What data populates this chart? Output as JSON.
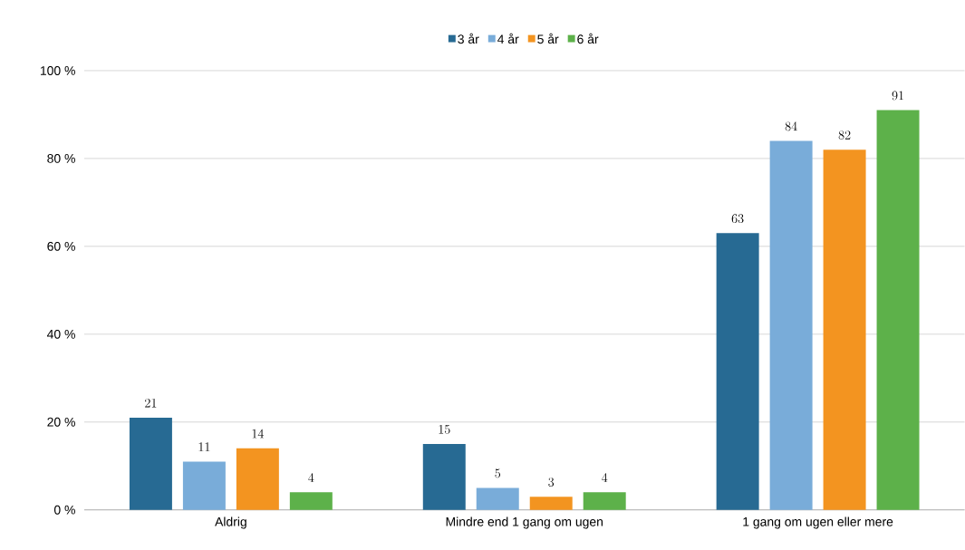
{
  "chart_data": {
    "type": "bar",
    "categories": [
      "Aldrig",
      "Mindre end 1 gang om ugen",
      "1 gang om ugen eller mere"
    ],
    "series": [
      {
        "name": "3 år",
        "color": "#276a93",
        "values": [
          21,
          15,
          63
        ]
      },
      {
        "name": "4 år",
        "color": "#79acd9",
        "values": [
          11,
          5,
          84
        ]
      },
      {
        "name": "5 år",
        "color": "#f39420",
        "values": [
          14,
          3,
          82
        ]
      },
      {
        "name": "6 år",
        "color": "#5db14a",
        "values": [
          4,
          4,
          91
        ]
      }
    ],
    "ylim": [
      0,
      100
    ],
    "yticks": [
      {
        "value": 0,
        "label": "0 %"
      },
      {
        "value": 20,
        "label": "20 %"
      },
      {
        "value": 40,
        "label": "40 %"
      },
      {
        "value": 60,
        "label": "60 %"
      },
      {
        "value": 80,
        "label": "80 %"
      },
      {
        "value": 100,
        "label": "100 %"
      }
    ],
    "grid": "y",
    "legend": "top",
    "data_labels": true
  }
}
